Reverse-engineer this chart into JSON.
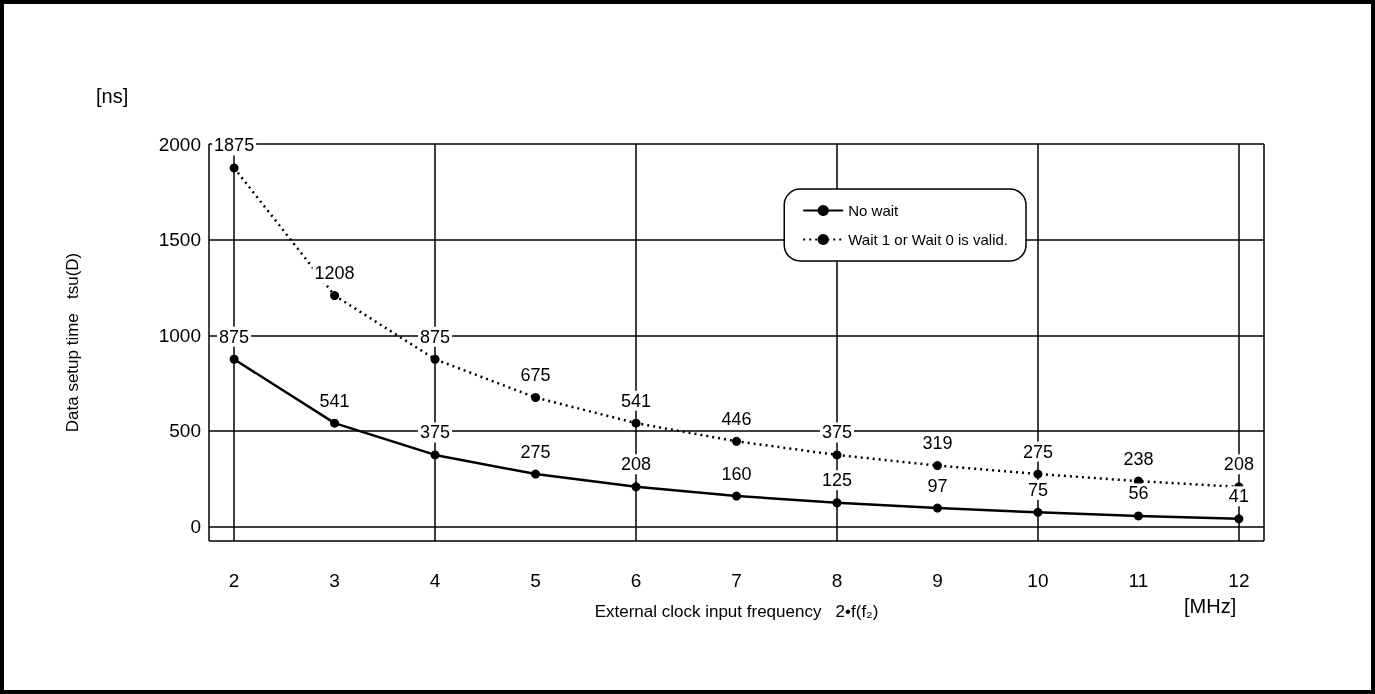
{
  "chart_data": {
    "type": "line",
    "xlabel": "External clock input frequency   2•f(f₂)",
    "ylabel": "Data setup time   tsu(D)",
    "annotations": [
      "[ns]",
      "[MHz]"
    ],
    "x": [
      2,
      3,
      4,
      5,
      6,
      7,
      8,
      9,
      10,
      11,
      12
    ],
    "series": [
      {
        "name": "No wait",
        "color": "#000000",
        "line_style": "solid",
        "values": [
          875,
          541,
          375,
          275,
          208,
          160,
          125,
          97,
          75,
          56,
          41
        ]
      },
      {
        "name": "Wait 1 or Wait 0 is valid.",
        "color": "#000000",
        "line_style": "dotted",
        "values": [
          1875,
          1208,
          875,
          675,
          541,
          446,
          375,
          319,
          275,
          238,
          208
        ]
      }
    ],
    "xlim": [
      1.75,
      12.25
    ],
    "xticks": [
      2,
      3,
      4,
      5,
      6,
      7,
      8,
      9,
      10,
      11,
      12
    ],
    "ylim": [
      -75,
      2000
    ],
    "yticks": [
      0,
      500,
      1000,
      1500,
      2000
    ],
    "grid": true,
    "legend": "top right",
    "marker": "circle",
    "data_labels": true
  }
}
